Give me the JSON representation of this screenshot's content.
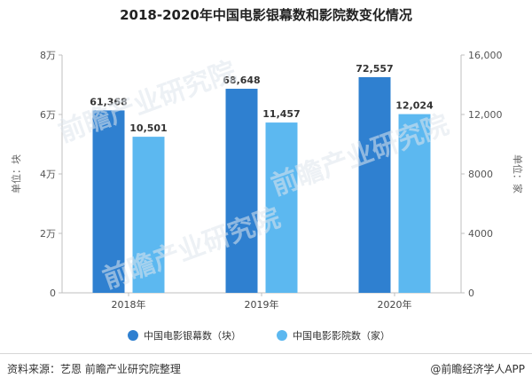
{
  "chart_data": {
    "type": "bar",
    "title": "2018-2020年中国电影银幕数和影院数变化情况",
    "categories": [
      "2018年",
      "2019年",
      "2020年"
    ],
    "series": [
      {
        "name": "中国电影银幕数（块）",
        "axis": "left",
        "color": "#2f80d0",
        "values": [
          61368,
          68648,
          72557
        ],
        "labels": [
          "61,368",
          "68,648",
          "72,557"
        ]
      },
      {
        "name": "中国电影影院数（家）",
        "axis": "right",
        "color": "#5cb8f0",
        "values": [
          10501,
          11457,
          12024
        ],
        "labels": [
          "10,501",
          "11,457",
          "12,024"
        ]
      }
    ],
    "y_left": {
      "label": "单位：块",
      "ylim": [
        0,
        80000
      ],
      "ticks": [
        0,
        20000,
        40000,
        60000,
        80000
      ],
      "tick_labels": [
        "0",
        "2万",
        "4万",
        "6万",
        "8万"
      ]
    },
    "y_right": {
      "label": "单位：家",
      "ylim": [
        0,
        16000
      ],
      "ticks": [
        0,
        4000,
        8000,
        12000,
        16000
      ],
      "tick_labels": [
        "0",
        "4000",
        "8000",
        "12,000",
        "16,000"
      ]
    },
    "legend_position": "bottom",
    "grid": false
  },
  "footer": {
    "source": "资料来源：艺恩 前瞻产业研究院整理",
    "brand": "@前瞻经济学人APP"
  },
  "watermark_text": "前瞻产业研究院"
}
